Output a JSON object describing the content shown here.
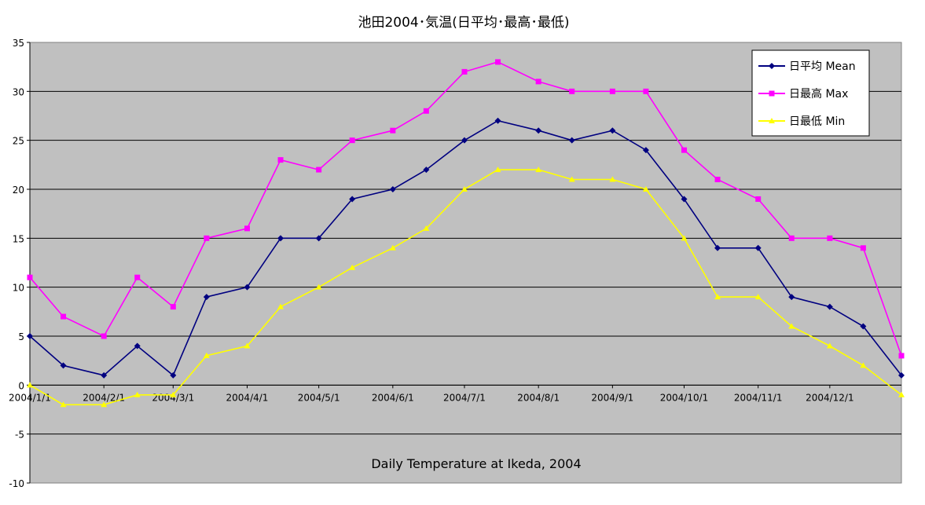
{
  "chart_data": {
    "type": "line",
    "title": "池田2004･気温(日平均･最高･最低)",
    "annotation": "Daily Temperature at Ikeda, 2004",
    "xlabel": "",
    "ylabel": "",
    "ylim": [
      -10,
      35
    ],
    "y_ticks": [
      -10,
      -5,
      0,
      5,
      10,
      15,
      20,
      25,
      30,
      35
    ],
    "x_ticks": [
      "2004/1/1",
      "2004/2/1",
      "2004/3/1",
      "2004/4/1",
      "2004/5/1",
      "2004/6/1",
      "2004/7/1",
      "2004/8/1",
      "2004/9/1",
      "2004/10/1",
      "2004/11/1",
      "2004/12/1"
    ],
    "x_range": [
      "2004/1/1",
      "2004/12/31"
    ],
    "grid": "horizontal major lines",
    "legend_position": "top-right",
    "colors": {
      "plot_background": "#c0c0c0",
      "mean": "#000080",
      "max": "#ff00ff",
      "min": "#ffff00"
    },
    "series": [
      {
        "name": "日平均 Mean",
        "color": "#000080",
        "marker": "diamond",
        "x": [
          "2004/1/1",
          "2004/1/15",
          "2004/2/1",
          "2004/2/15",
          "2004/3/1",
          "2004/3/15",
          "2004/4/1",
          "2004/4/15",
          "2004/5/1",
          "2004/5/15",
          "2004/6/1",
          "2004/6/15",
          "2004/7/1",
          "2004/7/15",
          "2004/8/1",
          "2004/8/15",
          "2004/9/1",
          "2004/9/15",
          "2004/10/1",
          "2004/10/15",
          "2004/11/1",
          "2004/11/15",
          "2004/12/1",
          "2004/12/15",
          "2004/12/31"
        ],
        "values": [
          5,
          2,
          1,
          4,
          1,
          9,
          10,
          15,
          15,
          19,
          20,
          22,
          25,
          27,
          26,
          25,
          26,
          24,
          19,
          14,
          14,
          9,
          8,
          6,
          1
        ]
      },
      {
        "name": "日最高 Max",
        "color": "#ff00ff",
        "marker": "square",
        "x": [
          "2004/1/1",
          "2004/1/15",
          "2004/2/1",
          "2004/2/15",
          "2004/3/1",
          "2004/3/15",
          "2004/4/1",
          "2004/4/15",
          "2004/5/1",
          "2004/5/15",
          "2004/6/1",
          "2004/6/15",
          "2004/7/1",
          "2004/7/15",
          "2004/8/1",
          "2004/8/15",
          "2004/9/1",
          "2004/9/15",
          "2004/10/1",
          "2004/10/15",
          "2004/11/1",
          "2004/11/15",
          "2004/12/1",
          "2004/12/15",
          "2004/12/31"
        ],
        "values": [
          11,
          7,
          5,
          11,
          8,
          15,
          16,
          23,
          22,
          25,
          26,
          28,
          32,
          33,
          31,
          30,
          30,
          30,
          24,
          21,
          19,
          15,
          15,
          14,
          3
        ]
      },
      {
        "name": "日最低 Min",
        "color": "#ffff00",
        "marker": "triangle",
        "x": [
          "2004/1/1",
          "2004/1/15",
          "2004/2/1",
          "2004/2/15",
          "2004/3/1",
          "2004/3/15",
          "2004/4/1",
          "2004/4/15",
          "2004/5/1",
          "2004/5/15",
          "2004/6/1",
          "2004/6/15",
          "2004/7/1",
          "2004/7/15",
          "2004/8/1",
          "2004/8/15",
          "2004/9/1",
          "2004/9/15",
          "2004/10/1",
          "2004/10/15",
          "2004/11/1",
          "2004/11/15",
          "2004/12/1",
          "2004/12/15",
          "2004/12/31"
        ],
        "values": [
          0,
          -2,
          -2,
          -1,
          -1,
          3,
          4,
          8,
          10,
          12,
          14,
          16,
          20,
          22,
          22,
          21,
          21,
          20,
          15,
          9,
          9,
          6,
          4,
          2,
          -1
        ]
      }
    ]
  }
}
